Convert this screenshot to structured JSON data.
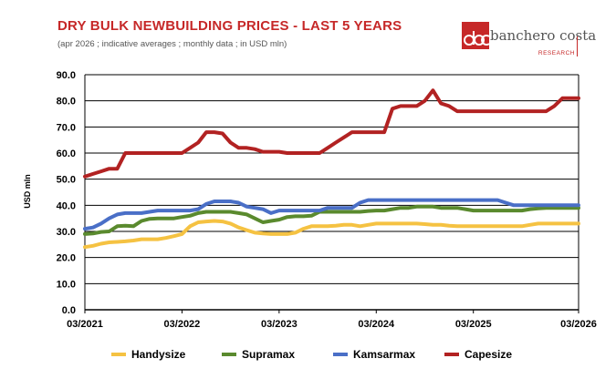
{
  "header": {
    "title": "DRY BULK NEWBUILDING PRICES - LAST 5 YEARS",
    "subtitle": "(apr 2026 ; indicative averages ; monthly data ; in USD mln)"
  },
  "logo": {
    "name": "banchero costa",
    "tagline": "RESEARCH"
  },
  "colors": {
    "title": "#c62828",
    "handysize": "#f5c242",
    "supramax": "#5a8a2e",
    "kamsarmax": "#4a6fc7",
    "capesize": "#b22222"
  },
  "chart_data": {
    "type": "line",
    "title": "DRY BULK NEWBUILDING PRICES - LAST 5 YEARS",
    "xlabel": "",
    "ylabel": "USD mln",
    "ylim": [
      0,
      90
    ],
    "yticks": [
      "0.0",
      "10.0",
      "20.0",
      "30.0",
      "40.0",
      "50.0",
      "60.0",
      "70.0",
      "80.0",
      "90.0"
    ],
    "xticks": [
      "03/2021",
      "03/2022",
      "03/2023",
      "03/2024",
      "03/2025",
      "03/2026"
    ],
    "x_range_months": [
      0,
      61
    ],
    "grid": true,
    "legend_position": "bottom",
    "series": [
      {
        "name": "Handysize",
        "color": "#f5c242",
        "points": [
          [
            0,
            24
          ],
          [
            1,
            24.5
          ],
          [
            2,
            25.3
          ],
          [
            3,
            25.8
          ],
          [
            4,
            26
          ],
          [
            5,
            26.2
          ],
          [
            6,
            26.5
          ],
          [
            7,
            27
          ],
          [
            8,
            27
          ],
          [
            9,
            27
          ],
          [
            10,
            27.5
          ],
          [
            11,
            28.2
          ],
          [
            12,
            29
          ],
          [
            13,
            32
          ],
          [
            14,
            33.5
          ],
          [
            15,
            33.8
          ],
          [
            16,
            34
          ],
          [
            17,
            33.8
          ],
          [
            18,
            33
          ],
          [
            19,
            31.5
          ],
          [
            20,
            30.5
          ],
          [
            21,
            29.5
          ],
          [
            22,
            29.2
          ],
          [
            23,
            29
          ],
          [
            24,
            29
          ],
          [
            25,
            29
          ],
          [
            26,
            29.5
          ],
          [
            27,
            31
          ],
          [
            28,
            32
          ],
          [
            29,
            32
          ],
          [
            30,
            32
          ],
          [
            31,
            32.2
          ],
          [
            32,
            32.5
          ],
          [
            33,
            32.5
          ],
          [
            34,
            32
          ],
          [
            35,
            32.5
          ],
          [
            36,
            33
          ],
          [
            37,
            33
          ],
          [
            38,
            33
          ],
          [
            39,
            33
          ],
          [
            40,
            33
          ],
          [
            41,
            33
          ],
          [
            42,
            32.8
          ],
          [
            43,
            32.5
          ],
          [
            44,
            32.5
          ],
          [
            45,
            32.2
          ],
          [
            46,
            32
          ],
          [
            47,
            32
          ],
          [
            48,
            32
          ],
          [
            49,
            32
          ],
          [
            50,
            32
          ],
          [
            51,
            32
          ],
          [
            52,
            32
          ],
          [
            53,
            32
          ],
          [
            54,
            32
          ],
          [
            55,
            32.5
          ],
          [
            56,
            33
          ],
          [
            57,
            33
          ],
          [
            58,
            33
          ],
          [
            59,
            33
          ],
          [
            60,
            33
          ],
          [
            61,
            33
          ]
        ]
      },
      {
        "name": "Supramax",
        "color": "#5a8a2e",
        "points": [
          [
            0,
            29
          ],
          [
            1,
            29.2
          ],
          [
            2,
            29.8
          ],
          [
            3,
            30
          ],
          [
            4,
            32
          ],
          [
            5,
            32.2
          ],
          [
            6,
            32
          ],
          [
            7,
            34
          ],
          [
            8,
            34.8
          ],
          [
            9,
            35
          ],
          [
            10,
            35
          ],
          [
            11,
            35
          ],
          [
            12,
            35.5
          ],
          [
            13,
            36
          ],
          [
            14,
            37
          ],
          [
            15,
            37.5
          ],
          [
            16,
            37.5
          ],
          [
            17,
            37.5
          ],
          [
            18,
            37.5
          ],
          [
            19,
            37
          ],
          [
            20,
            36.5
          ],
          [
            21,
            35
          ],
          [
            22,
            33.5
          ],
          [
            23,
            34
          ],
          [
            24,
            34.5
          ],
          [
            25,
            35.5
          ],
          [
            26,
            35.8
          ],
          [
            27,
            35.8
          ],
          [
            28,
            36
          ],
          [
            29,
            37.5
          ],
          [
            30,
            37.5
          ],
          [
            31,
            37.5
          ],
          [
            32,
            37.5
          ],
          [
            33,
            37.5
          ],
          [
            34,
            37.5
          ],
          [
            35,
            37.8
          ],
          [
            36,
            38
          ],
          [
            37,
            38
          ],
          [
            38,
            38.5
          ],
          [
            39,
            39
          ],
          [
            40,
            39
          ],
          [
            41,
            39.5
          ],
          [
            42,
            39.5
          ],
          [
            43,
            39.5
          ],
          [
            44,
            39
          ],
          [
            45,
            39
          ],
          [
            46,
            39
          ],
          [
            47,
            38.5
          ],
          [
            48,
            38
          ],
          [
            49,
            38
          ],
          [
            50,
            38
          ],
          [
            51,
            38
          ],
          [
            52,
            38
          ],
          [
            53,
            38
          ],
          [
            54,
            38
          ],
          [
            55,
            38.5
          ],
          [
            56,
            38.8
          ],
          [
            57,
            39
          ],
          [
            58,
            39
          ],
          [
            59,
            39
          ],
          [
            60,
            39
          ],
          [
            61,
            39
          ]
        ]
      },
      {
        "name": "Kamsarmax",
        "color": "#4a6fc7",
        "points": [
          [
            0,
            31
          ],
          [
            1,
            31.5
          ],
          [
            2,
            33
          ],
          [
            3,
            35
          ],
          [
            4,
            36.5
          ],
          [
            5,
            37
          ],
          [
            6,
            37
          ],
          [
            7,
            37
          ],
          [
            8,
            37.5
          ],
          [
            9,
            38
          ],
          [
            10,
            38
          ],
          [
            11,
            38
          ],
          [
            12,
            38
          ],
          [
            13,
            38
          ],
          [
            14,
            38.5
          ],
          [
            15,
            40.5
          ],
          [
            16,
            41.5
          ],
          [
            17,
            41.5
          ],
          [
            18,
            41.5
          ],
          [
            19,
            41
          ],
          [
            20,
            39.5
          ],
          [
            21,
            39
          ],
          [
            22,
            38.5
          ],
          [
            23,
            37
          ],
          [
            24,
            38
          ],
          [
            25,
            38
          ],
          [
            26,
            38
          ],
          [
            27,
            38
          ],
          [
            28,
            38
          ],
          [
            29,
            38
          ],
          [
            30,
            39
          ],
          [
            31,
            39
          ],
          [
            32,
            39
          ],
          [
            33,
            39
          ],
          [
            34,
            41
          ],
          [
            35,
            42
          ],
          [
            36,
            42
          ],
          [
            37,
            42
          ],
          [
            38,
            42
          ],
          [
            39,
            42
          ],
          [
            40,
            42
          ],
          [
            41,
            42
          ],
          [
            42,
            42
          ],
          [
            43,
            42
          ],
          [
            44,
            42
          ],
          [
            45,
            42
          ],
          [
            46,
            42
          ],
          [
            47,
            42
          ],
          [
            48,
            42
          ],
          [
            49,
            42
          ],
          [
            50,
            42
          ],
          [
            51,
            42
          ],
          [
            52,
            41
          ],
          [
            53,
            40
          ],
          [
            54,
            40
          ],
          [
            55,
            40
          ],
          [
            56,
            40
          ],
          [
            57,
            40
          ],
          [
            58,
            40
          ],
          [
            59,
            40
          ],
          [
            60,
            40
          ],
          [
            61,
            40
          ]
        ]
      },
      {
        "name": "Capesize",
        "color": "#b22222",
        "points": [
          [
            0,
            51
          ],
          [
            1,
            52
          ],
          [
            2,
            53
          ],
          [
            3,
            54
          ],
          [
            4,
            54
          ],
          [
            5,
            60
          ],
          [
            6,
            60
          ],
          [
            7,
            60
          ],
          [
            8,
            60
          ],
          [
            9,
            60
          ],
          [
            10,
            60
          ],
          [
            11,
            60
          ],
          [
            12,
            60
          ],
          [
            13,
            62
          ],
          [
            14,
            64
          ],
          [
            15,
            68
          ],
          [
            16,
            68
          ],
          [
            17,
            67.5
          ],
          [
            18,
            64
          ],
          [
            19,
            62
          ],
          [
            20,
            62
          ],
          [
            21,
            61.5
          ],
          [
            22,
            60.5
          ],
          [
            23,
            60.5
          ],
          [
            24,
            60.5
          ],
          [
            25,
            60
          ],
          [
            26,
            60
          ],
          [
            27,
            60
          ],
          [
            28,
            60
          ],
          [
            29,
            60
          ],
          [
            30,
            62
          ],
          [
            31,
            64
          ],
          [
            32,
            66
          ],
          [
            33,
            68
          ],
          [
            34,
            68
          ],
          [
            35,
            68
          ],
          [
            36,
            68
          ],
          [
            37,
            68
          ],
          [
            38,
            77
          ],
          [
            39,
            78
          ],
          [
            40,
            78
          ],
          [
            41,
            78
          ],
          [
            42,
            80
          ],
          [
            43,
            84
          ],
          [
            44,
            79
          ],
          [
            45,
            78
          ],
          [
            46,
            76
          ],
          [
            47,
            76
          ],
          [
            48,
            76
          ],
          [
            49,
            76
          ],
          [
            50,
            76
          ],
          [
            51,
            76
          ],
          [
            52,
            76
          ],
          [
            53,
            76
          ],
          [
            54,
            76
          ],
          [
            55,
            76
          ],
          [
            56,
            76
          ],
          [
            57,
            76
          ],
          [
            58,
            78
          ],
          [
            59,
            81
          ],
          [
            60,
            81
          ],
          [
            61,
            81
          ]
        ]
      }
    ]
  }
}
